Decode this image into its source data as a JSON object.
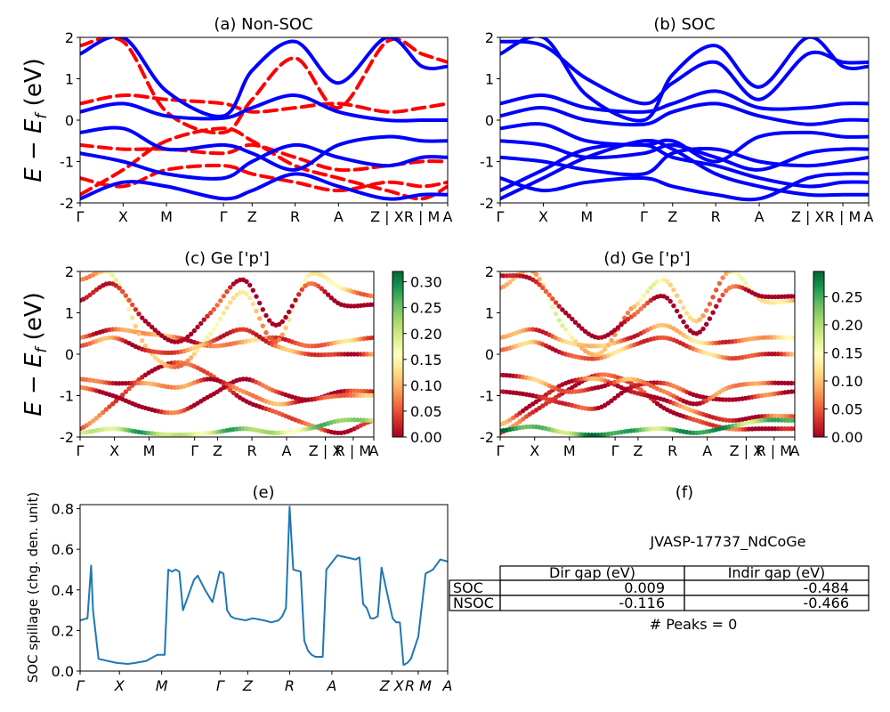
{
  "k_path_labels": [
    "Γ",
    "X",
    "M",
    "Γ",
    "Z",
    "R",
    "A",
    "Z | X",
    "R | M",
    "A"
  ],
  "y_axis_label": "E − E_f (eV)",
  "colors": {
    "nsoc_band": "#ff0000",
    "soc_band": "#0000ff",
    "spillage_line": "#1f77b4"
  },
  "panels": {
    "a": {
      "title": "(a) Non-SOC"
    },
    "b": {
      "title": "(b) SOC"
    },
    "c": {
      "title": "(c)  Ge ['p']",
      "cbar_ticks": [
        "0.00",
        "0.05",
        "0.10",
        "0.15",
        "0.20",
        "0.25",
        "0.30"
      ],
      "cbar_max": 0.32
    },
    "d": {
      "title": "(d) Ge ['p']",
      "cbar_ticks": [
        "0.00",
        "0.05",
        "0.10",
        "0.15",
        "0.20",
        "0.25"
      ],
      "cbar_max": 0.295
    },
    "e": {
      "title": "(e)",
      "ylabel": "SOC spillage (chg. den. unit)",
      "xticks": [
        "Γ",
        "X",
        "M",
        "Γ",
        "Z",
        "R",
        "A",
        "Z X",
        "R M",
        "A"
      ]
    },
    "f": {
      "title": "(f)",
      "material": "JVASP-17737_NdCoGe",
      "peaks": "# Peaks = 0"
    }
  },
  "table": {
    "headers": [
      "",
      "Dir gap (eV)",
      "Indir gap (eV)"
    ],
    "rows": [
      [
        "SOC",
        "0.009",
        "-0.484"
      ],
      [
        "NSOC",
        "-0.116",
        "-0.466"
      ]
    ]
  },
  "chart_data": [
    {
      "type": "line",
      "panel": "a",
      "title": "(a) Non-SOC",
      "ylabel": "E − E_f (eV)",
      "xticks": [
        "Γ",
        "X",
        "M",
        "Γ",
        "Z",
        "R",
        "A",
        "Z | X",
        "R | M",
        "A"
      ],
      "ylim": [
        -2,
        2
      ],
      "yticks": [
        -2,
        -1,
        0,
        1,
        2
      ],
      "series": [
        {
          "style": "nsoc",
          "values": [
            -1.8,
            -1.2,
            -0.5,
            -0.2,
            -0.5,
            -1.1,
            -1.4,
            -1.7,
            -1.9,
            -1.6
          ]
        },
        {
          "style": "nsoc",
          "values": [
            -0.6,
            -0.7,
            -0.7,
            -0.8,
            -0.6,
            -0.9,
            -1.2,
            -1.1,
            -1.0,
            -1.0
          ]
        },
        {
          "style": "nsoc",
          "values": [
            0.4,
            0.6,
            0.5,
            0.4,
            0.2,
            0.3,
            0.4,
            0.2,
            0.3,
            0.4
          ]
        },
        {
          "style": "nsoc",
          "values": [
            1.8,
            1.9,
            0.2,
            -0.3,
            0.5,
            1.5,
            0.3,
            1.9,
            1.6,
            1.4
          ]
        },
        {
          "style": "nsoc",
          "values": [
            -1.4,
            -1.6,
            -1.2,
            -1.1,
            -1.3,
            -1.5,
            -1.7,
            -1.5,
            -1.6,
            -1.5
          ]
        },
        {
          "style": "soc",
          "values": [
            -0.8,
            -1.0,
            -1.3,
            -1.4,
            -1.0,
            -0.6,
            -0.9,
            -1.1,
            -0.9,
            -0.9
          ]
        },
        {
          "style": "soc",
          "values": [
            0.2,
            0.4,
            0.1,
            0.05,
            0.3,
            0.6,
            0.2,
            0.0,
            0.0,
            0.0
          ]
        },
        {
          "style": "soc",
          "values": [
            -1.9,
            -1.5,
            -1.6,
            -1.9,
            -1.7,
            -1.3,
            -1.6,
            -1.9,
            -1.8,
            -1.8
          ]
        },
        {
          "style": "soc",
          "values": [
            1.6,
            2.0,
            0.7,
            0.1,
            1.2,
            1.9,
            0.9,
            2.0,
            1.3,
            1.3
          ]
        },
        {
          "style": "soc",
          "values": [
            -0.3,
            -0.2,
            -0.7,
            -0.6,
            -0.8,
            -1.2,
            -0.6,
            -0.4,
            -0.5,
            -0.5
          ]
        }
      ]
    },
    {
      "type": "line",
      "panel": "b",
      "title": "(b) SOC",
      "xticks": [
        "Γ",
        "X",
        "M",
        "Γ",
        "Z",
        "R",
        "A",
        "Z | X",
        "R | M",
        "A"
      ],
      "ylim": [
        -2,
        2
      ],
      "yticks": [
        -2,
        -1,
        0,
        1,
        2
      ],
      "series": [
        {
          "values": [
            -1.9,
            -1.4,
            -0.9,
            -0.5,
            -0.7,
            -1.3,
            -1.6,
            -1.8,
            -1.8,
            -1.8
          ]
        },
        {
          "values": [
            -1.7,
            -1.2,
            -0.7,
            -0.6,
            -0.9,
            -1.1,
            -1.4,
            -1.6,
            -1.5,
            -1.5
          ]
        },
        {
          "values": [
            -0.9,
            -1.0,
            -1.2,
            -1.3,
            -0.8,
            -0.7,
            -1.0,
            -1.1,
            -1.0,
            -0.9
          ]
        },
        {
          "values": [
            -0.5,
            -0.6,
            -0.9,
            -0.8,
            -0.6,
            -0.9,
            -1.2,
            -0.8,
            -0.7,
            -0.7
          ]
        },
        {
          "values": [
            0.1,
            0.3,
            0.0,
            -0.1,
            0.2,
            0.4,
            0.1,
            -0.1,
            0.0,
            0.0
          ]
        },
        {
          "values": [
            0.4,
            0.6,
            0.3,
            0.2,
            0.4,
            0.7,
            0.3,
            0.3,
            0.4,
            0.4
          ]
        },
        {
          "values": [
            1.6,
            2.0,
            0.6,
            0.0,
            1.1,
            1.8,
            0.8,
            2.0,
            1.3,
            1.3
          ]
        },
        {
          "values": [
            1.9,
            1.8,
            1.0,
            0.4,
            0.9,
            1.4,
            0.5,
            1.6,
            1.4,
            1.4
          ]
        },
        {
          "values": [
            -1.4,
            -1.7,
            -1.5,
            -1.4,
            -1.6,
            -1.8,
            -1.9,
            -1.4,
            -1.3,
            -1.3
          ]
        },
        {
          "values": [
            -0.2,
            -0.1,
            -0.5,
            -0.6,
            -0.5,
            -1.0,
            -0.4,
            -0.3,
            -0.4,
            -0.4
          ]
        }
      ]
    },
    {
      "type": "scatter",
      "panel": "c",
      "title": "(c)  Ge ['p']",
      "ylabel": "E − E_f (eV)",
      "xticks": [
        "Γ",
        "X",
        "M",
        "Γ",
        "Z",
        "R",
        "A",
        "Z | X",
        "R | M",
        "A"
      ],
      "ylim": [
        -2,
        2
      ],
      "color_range": [
        0,
        0.32
      ],
      "series": [
        {
          "values": [
            -1.8,
            -1.2,
            -0.5,
            -0.2,
            -0.5,
            -1.1,
            -1.4,
            -1.7,
            -1.9,
            -1.6
          ],
          "weight": 0.03
        },
        {
          "values": [
            -0.8,
            -1.0,
            -1.3,
            -1.4,
            -1.0,
            -0.6,
            -0.9,
            -1.1,
            -0.9,
            -0.9
          ],
          "weight": 0.01
        },
        {
          "values": [
            0.4,
            0.6,
            0.5,
            0.4,
            0.2,
            0.3,
            0.4,
            0.2,
            0.3,
            0.4
          ],
          "weight": 0.07
        },
        {
          "values": [
            1.8,
            1.9,
            0.2,
            -0.3,
            0.5,
            1.5,
            0.3,
            1.9,
            1.6,
            1.4
          ],
          "weight": 0.12
        },
        {
          "values": [
            0.2,
            0.4,
            0.1,
            0.05,
            0.3,
            0.6,
            0.2,
            0.0,
            0.0,
            0.0
          ],
          "weight": 0.05
        },
        {
          "values": [
            -0.6,
            -0.7,
            -0.7,
            -0.8,
            -0.6,
            -0.9,
            -1.2,
            -1.1,
            -1.0,
            -1.0
          ],
          "weight": 0.06
        },
        {
          "values": [
            -1.9,
            -1.8,
            -1.9,
            -1.95,
            -1.9,
            -1.8,
            -1.9,
            -1.8,
            -1.6,
            -1.6
          ],
          "weight": 0.22
        },
        {
          "values": [
            1.3,
            1.7,
            0.8,
            0.3,
            1.0,
            1.8,
            0.7,
            1.7,
            1.2,
            1.2
          ],
          "weight": 0.0
        }
      ]
    },
    {
      "type": "scatter",
      "panel": "d",
      "title": "(d) Ge ['p']",
      "xticks": [
        "Γ",
        "X",
        "M",
        "Γ",
        "Z",
        "R",
        "A",
        "Z | X",
        "R | M",
        "A"
      ],
      "ylim": [
        -2,
        2
      ],
      "color_range": [
        0,
        0.295
      ],
      "series": [
        {
          "values": [
            -1.9,
            -1.4,
            -0.9,
            -0.5,
            -0.7,
            -1.3,
            -1.6,
            -1.8,
            -1.8,
            -1.8
          ],
          "weight": 0.02
        },
        {
          "values": [
            -1.7,
            -1.2,
            -0.7,
            -0.6,
            -0.9,
            -1.1,
            -1.4,
            -1.6,
            -1.5,
            -1.5
          ],
          "weight": 0.03
        },
        {
          "values": [
            -0.9,
            -1.0,
            -1.2,
            -1.3,
            -0.8,
            -0.7,
            -1.0,
            -1.1,
            -1.0,
            -0.9
          ],
          "weight": 0.01
        },
        {
          "values": [
            -0.5,
            -0.6,
            -0.9,
            -0.8,
            -0.6,
            -0.9,
            -1.2,
            -0.8,
            -0.7,
            -0.7
          ],
          "weight": 0.05
        },
        {
          "values": [
            0.1,
            0.3,
            0.0,
            -0.1,
            0.2,
            0.4,
            0.1,
            -0.1,
            0.0,
            0.0
          ],
          "weight": 0.06
        },
        {
          "values": [
            0.4,
            0.6,
            0.3,
            0.2,
            0.4,
            0.7,
            0.3,
            0.3,
            0.4,
            0.4
          ],
          "weight": 0.08
        },
        {
          "values": [
            1.6,
            2.0,
            0.6,
            0.0,
            1.1,
            1.8,
            0.8,
            2.0,
            1.3,
            1.3
          ],
          "weight": 0.11
        },
        {
          "values": [
            1.9,
            1.8,
            1.0,
            0.4,
            0.9,
            1.4,
            0.5,
            1.6,
            1.4,
            1.4
          ],
          "weight": 0.0
        },
        {
          "values": [
            -1.85,
            -1.75,
            -1.9,
            -1.95,
            -1.85,
            -1.8,
            -1.9,
            -1.75,
            -1.6,
            -1.6
          ],
          "weight": 0.24
        }
      ]
    },
    {
      "type": "line",
      "panel": "e",
      "title": "(e)",
      "ylabel": "SOC spillage (chg. den. unit)",
      "ylim": [
        0,
        0.82
      ],
      "yticks": [
        0.0,
        0.2,
        0.4,
        0.6,
        0.8
      ],
      "xticks": [
        "Γ",
        "X",
        "M",
        "Γ",
        "Z",
        "R",
        "A",
        "Z X",
        "R M",
        "A"
      ],
      "x": [
        0,
        0.02,
        0.03,
        0.035,
        0.05,
        0.1,
        0.13,
        0.15,
        0.18,
        0.2,
        0.21,
        0.23,
        0.24,
        0.25,
        0.26,
        0.27,
        0.28,
        0.29,
        0.3,
        0.31,
        0.32,
        0.34,
        0.36,
        0.38,
        0.39,
        0.4,
        0.41,
        0.42,
        0.45,
        0.47,
        0.5,
        0.52,
        0.54,
        0.55,
        0.56,
        0.57,
        0.58,
        0.6,
        0.61,
        0.62,
        0.63,
        0.64,
        0.65,
        0.66,
        0.67,
        0.7,
        0.75,
        0.76,
        0.77,
        0.78,
        0.79,
        0.8,
        0.81,
        0.82,
        0.85,
        0.86,
        0.87,
        0.88,
        0.89,
        0.9,
        0.92,
        0.94,
        0.96,
        0.98,
        1.0
      ],
      "y": [
        0.25,
        0.26,
        0.52,
        0.3,
        0.06,
        0.04,
        0.035,
        0.04,
        0.05,
        0.07,
        0.08,
        0.08,
        0.5,
        0.49,
        0.5,
        0.49,
        0.3,
        0.35,
        0.4,
        0.45,
        0.47,
        0.4,
        0.34,
        0.49,
        0.48,
        0.3,
        0.27,
        0.26,
        0.25,
        0.26,
        0.25,
        0.24,
        0.25,
        0.27,
        0.31,
        0.81,
        0.5,
        0.49,
        0.15,
        0.1,
        0.08,
        0.07,
        0.07,
        0.07,
        0.5,
        0.57,
        0.55,
        0.56,
        0.33,
        0.31,
        0.26,
        0.26,
        0.27,
        0.51,
        0.26,
        0.24,
        0.24,
        0.03,
        0.04,
        0.06,
        0.17,
        0.48,
        0.5,
        0.55,
        0.54
      ]
    }
  ]
}
